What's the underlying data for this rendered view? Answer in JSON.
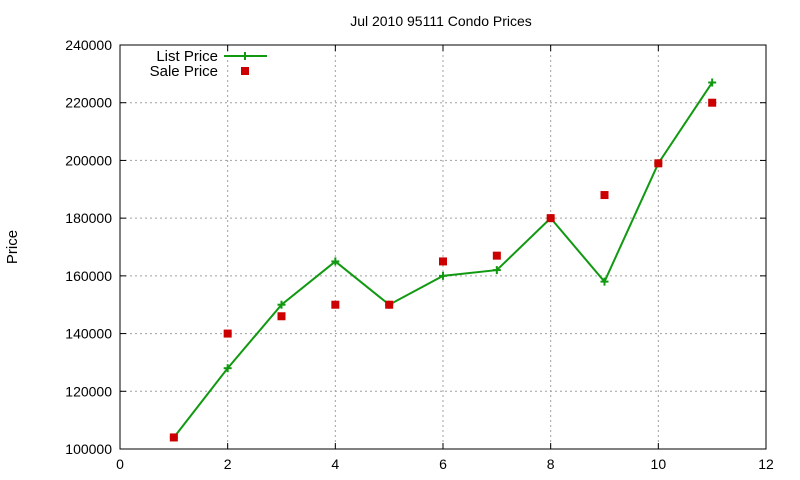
{
  "chart_data": {
    "type": "line",
    "title": "Jul 2010 95111 Condo Prices",
    "xlabel": "",
    "ylabel": "Price",
    "xlim": [
      0,
      12
    ],
    "ylim": [
      100000,
      240000
    ],
    "x_ticks": [
      "0",
      "2",
      "4",
      "6",
      "8",
      "10",
      "12"
    ],
    "y_ticks": [
      "100000",
      "120000",
      "140000",
      "160000",
      "180000",
      "200000",
      "220000",
      "240000"
    ],
    "grid": true,
    "legend_position": "top-left",
    "series": [
      {
        "name": "List Price",
        "style": "line-with-plus-markers",
        "color": "#119911",
        "x": [
          1,
          2,
          3,
          4,
          5,
          6,
          7,
          8,
          9,
          10,
          11
        ],
        "y": [
          104000,
          128000,
          150000,
          165000,
          150000,
          160000,
          162000,
          180000,
          158000,
          199000,
          227000
        ]
      },
      {
        "name": "Sale Price",
        "style": "square-markers",
        "color": "#cc0000",
        "x": [
          1,
          2,
          3,
          4,
          5,
          6,
          7,
          8,
          9,
          10,
          11
        ],
        "y": [
          104000,
          140000,
          146000,
          150000,
          150000,
          165000,
          167000,
          180000,
          188000,
          199000,
          220000
        ]
      }
    ]
  }
}
